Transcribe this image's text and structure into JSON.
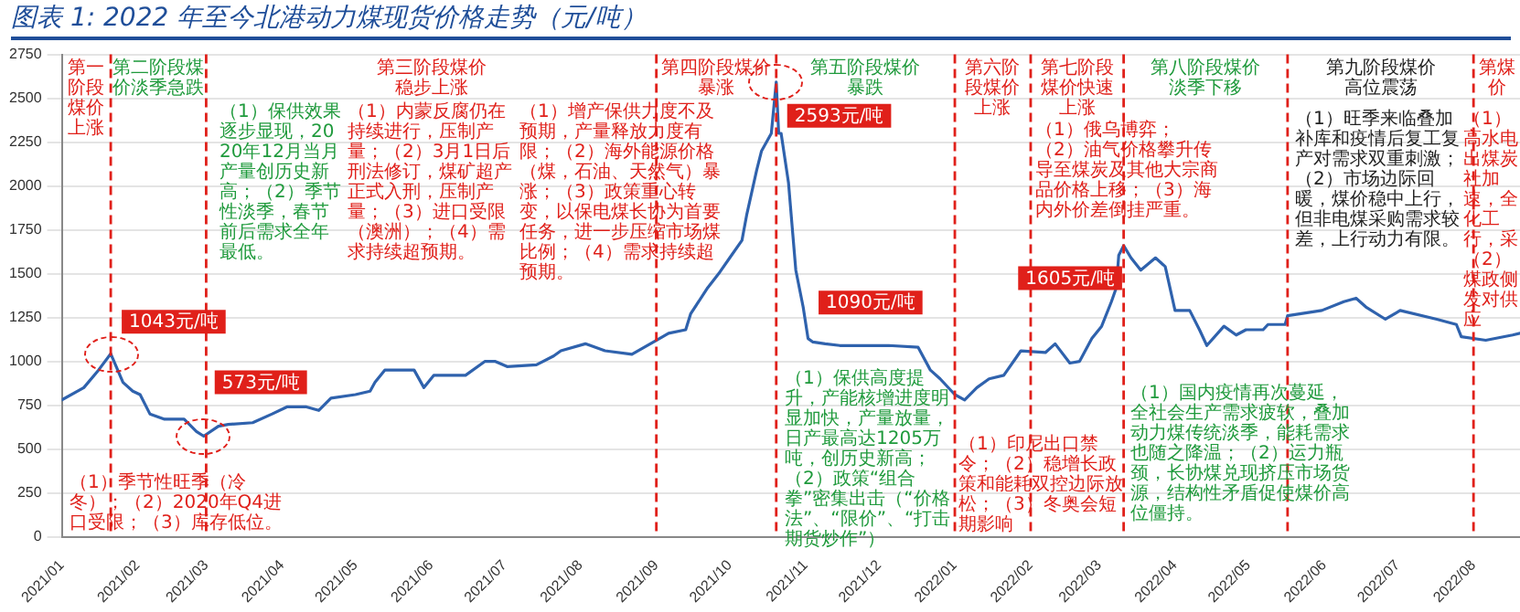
{
  "chart_data": {
    "type": "line",
    "title": "图表 1:  2022 年至今北港动力煤现货价格走势（元/吨）",
    "x": [
      "2021-01-01",
      "2021-01-10",
      "2021-01-16",
      "2021-01-21",
      "2021-01-26",
      "2021-01-30",
      "2021-02-02",
      "2021-02-06",
      "2021-02-12",
      "2021-02-20",
      "2021-02-25",
      "2021-02-28",
      "2021-03-06",
      "2021-03-10",
      "2021-03-20",
      "2021-03-28",
      "2021-04-03",
      "2021-04-11",
      "2021-04-16",
      "2021-04-21",
      "2021-05-01",
      "2021-05-07",
      "2021-05-09",
      "2021-05-13",
      "2021-05-25",
      "2021-05-29",
      "2021-06-02",
      "2021-06-15",
      "2021-06-23",
      "2021-06-27",
      "2021-07-02",
      "2021-07-14",
      "2021-07-21",
      "2021-07-24",
      "2021-08-03",
      "2021-08-11",
      "2021-08-22",
      "2021-09-01",
      "2021-09-06",
      "2021-09-13",
      "2021-09-15",
      "2021-09-22",
      "2021-09-27",
      "2021-10-01",
      "2021-10-06",
      "2021-10-08",
      "2021-10-12",
      "2021-10-14",
      "2021-10-18",
      "2021-10-20",
      "2021-10-21",
      "2021-10-22",
      "2021-10-25",
      "2021-10-28",
      "2021-10-31",
      "2021-11-02",
      "2021-11-04",
      "2021-11-09",
      "2021-11-15",
      "2021-11-25",
      "2021-12-05",
      "2021-12-17",
      "2021-12-22",
      "2021-12-26",
      "2022-01-01",
      "2022-01-05",
      "2022-01-10",
      "2022-01-15",
      "2022-01-21",
      "2022-01-26",
      "2022-01-28",
      "2022-02-07",
      "2022-02-11",
      "2022-02-17",
      "2022-02-21",
      "2022-02-26",
      "2022-03-02",
      "2022-03-06",
      "2022-03-08",
      "2022-03-09",
      "2022-03-11",
      "2022-03-14",
      "2022-03-18",
      "2022-03-24",
      "2022-03-28",
      "2022-04-01",
      "2022-04-07",
      "2022-04-11",
      "2022-04-14",
      "2022-04-21",
      "2022-04-26",
      "2022-04-30",
      "2022-05-07",
      "2022-05-09",
      "2022-05-16",
      "2022-05-17",
      "2022-05-31",
      "2022-06-09",
      "2022-06-14",
      "2022-06-18",
      "2022-06-26",
      "2022-07-02",
      "2022-07-17",
      "2022-07-25",
      "2022-07-27",
      "2022-08-06",
      "2022-08-17",
      "2022-08-20"
    ],
    "values": [
      780,
      850,
      950,
      1043,
      880,
      830,
      810,
      700,
      670,
      670,
      600,
      573,
      630,
      640,
      650,
      700,
      740,
      740,
      720,
      790,
      810,
      830,
      880,
      950,
      950,
      850,
      920,
      920,
      1000,
      1000,
      970,
      980,
      1030,
      1060,
      1100,
      1060,
      1040,
      1120,
      1160,
      1180,
      1270,
      1420,
      1510,
      1590,
      1690,
      1840,
      2090,
      2200,
      2300,
      2593,
      2300,
      2300,
      2020,
      1520,
      1310,
      1130,
      1110,
      1100,
      1090,
      1090,
      1090,
      1080,
      950,
      900,
      810,
      780,
      850,
      900,
      920,
      1020,
      1060,
      1050,
      1100,
      990,
      1000,
      1130,
      1200,
      1340,
      1420,
      1605,
      1660,
      1590,
      1520,
      1590,
      1540,
      1290,
      1290,
      1180,
      1090,
      1200,
      1150,
      1180,
      1180,
      1210,
      1210,
      1260,
      1290,
      1340,
      1360,
      1310,
      1240,
      1290,
      1240,
      1210,
      1140,
      1120,
      1150,
      1160
    ],
    "color": "#2f62ad",
    "marker": "none",
    "line_style": "solid",
    "grid": "y",
    "xlim": [
      "2021-01-01",
      "2022-08-20"
    ],
    "xticks": [
      {
        "value": "2021-01",
        "label": "2021/01"
      },
      {
        "value": "2021-02",
        "label": "2021/02"
      },
      {
        "value": "2021-03",
        "label": "2021/03"
      },
      {
        "value": "2021-04",
        "label": "2021/04"
      },
      {
        "value": "2021-05",
        "label": "2021/05"
      },
      {
        "value": "2021-06",
        "label": "2021/06"
      },
      {
        "value": "2021-07",
        "label": "2021/07"
      },
      {
        "value": "2021-08",
        "label": "2021/08"
      },
      {
        "value": "2021-09",
        "label": "2021/09"
      },
      {
        "value": "2021-10",
        "label": "2021/10"
      },
      {
        "value": "2021-11",
        "label": "2021/11"
      },
      {
        "value": "2021-12",
        "label": "2021/12"
      },
      {
        "value": "2022-01",
        "label": "2022/01"
      },
      {
        "value": "2022-02",
        "label": "2022/02"
      },
      {
        "value": "2022-03",
        "label": "2022/03"
      },
      {
        "value": "2022-04",
        "label": "2022/04"
      },
      {
        "value": "2022-05",
        "label": "2022/05"
      },
      {
        "value": "2022-06",
        "label": "2022/06"
      },
      {
        "value": "2022-07",
        "label": "2022/07"
      },
      {
        "value": "2022-08",
        "label": "2022/08"
      }
    ],
    "ylim": [
      0,
      2750
    ],
    "yticks": [
      0,
      250,
      500,
      750,
      1000,
      1250,
      1500,
      1750,
      2000,
      2250,
      2500,
      2750
    ],
    "ref_lines": [
      {
        "axis": "x",
        "value": "2021-01-21",
        "color": "#e0201a",
        "line_style": "dashed"
      },
      {
        "axis": "x",
        "value": "2021-03-01",
        "color": "#e0201a",
        "line_style": "dashed"
      },
      {
        "axis": "x",
        "value": "2021-09-01",
        "color": "#e0201a",
        "line_style": "dashed"
      },
      {
        "axis": "x",
        "value": "2021-10-20",
        "color": "#e0201a",
        "line_style": "dashed"
      },
      {
        "axis": "x",
        "value": "2022-01-01",
        "color": "#e0201a",
        "line_style": "dashed"
      },
      {
        "axis": "x",
        "value": "2022-02-01",
        "color": "#e0201a",
        "line_style": "dashed"
      },
      {
        "axis": "x",
        "value": "2022-03-11",
        "color": "#e0201a",
        "line_style": "dashed"
      },
      {
        "axis": "x",
        "value": "2022-05-17",
        "color": "#e0201a",
        "line_style": "dashed"
      },
      {
        "axis": "x",
        "value": "2022-08-01",
        "color": "#e0201a",
        "line_style": "dashed"
      }
    ],
    "annotations": [
      "第一阶段煤价上涨",
      "第二阶段煤价淡季急跌",
      "第三阶段煤价稳步上涨",
      "第四阶段煤价暴涨",
      "第五阶段煤价暴跌",
      "第六阶段煤价上涨",
      "第七阶段煤价快速上涨",
      "第八阶段煤价淡季下移",
      "第九阶段煤价高位震荡",
      "第煤价",
      "（1）季节性旺季（冷冬）；（2）2020年Q4进口受限；（3）库存低位。",
      "（1）保供效果逐步显现，2020年12月当月产量创历史新高；（2）季节性淡季，春节前后需求全年最低。",
      "（1）内蒙反腐仍在持续进行，压制产量；（2）3月1日后刑法修订，煤矿超产正式入刑，压制产量；（3）进口受限（澳洲）；（4）需求持续超预期。",
      "（1）增产保供力度不及预期，产量释放力度有限；（2）海外能源价格（煤，石油、天然气）暴涨；（3）政策重心转变，以保电煤长协为首要任务，进一步压缩市场煤比例；（4）需求持续超预期。",
      "（1）保供高度提升，产能核增进度明显加快，产量放量，日产最高达1205万吨，创历史新高；（2）政策“组合拳”密集出击（“价格法”、“限价”、“打击期货炒作”）",
      "（1）印尼出口禁令；（2）稳增长政策和能耗双控边际放松；（3）冬奥会短期影响",
      "（1）俄乌博弈；（2）油气价格攀升传导至煤炭及其他大宗商品价格上移；（3）海内外价差倒挂严重。",
      "（1）国内疫情再次蔓延，全社会生产需求疲软，叠加动力煤传统淡季，能耗需求也随之降温；（2）运力瓶颈，长协煤兑现挤压市场货源，结构性矛盾促使煤价高位僵持。",
      "（1）旺季来临叠加补库和疫情后复工复产对需求双重刺激；（2）市场边际回暖，煤价稳中上行，但非电煤采购需求较差，上行动力有限。",
      "（1）高水电出煤炭社加速，全化工行，采（2）煤政侧发对供应",
      {
        "text": "1043元/吨",
        "x": "2021-01-21",
        "y": 1043
      },
      {
        "text": "573元/吨",
        "x": "2021-02-28",
        "y": 573
      },
      {
        "text": "2593元/吨",
        "x": "2021-10-20",
        "y": 2593
      },
      {
        "text": "1090元/吨",
        "x": "2021-11-25",
        "y": 1090
      },
      {
        "text": "1605元/吨",
        "x": "2022-03-09",
        "y": 1605
      }
    ]
  }
}
